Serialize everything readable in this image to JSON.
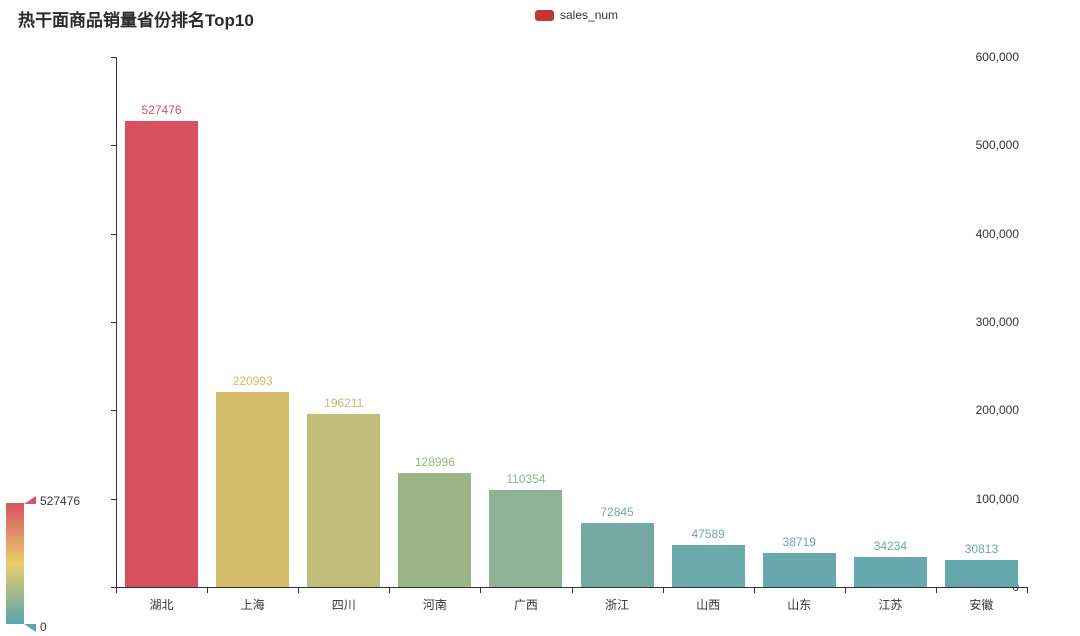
{
  "title": "热干面商品销量省份排名Top10",
  "legend": {
    "label": "sales_num",
    "color": "#c23531"
  },
  "chart_data": {
    "type": "bar",
    "title": "热干面商品销量省份排名Top10",
    "legend": [
      "sales_num"
    ],
    "legend_position": "top-center",
    "categories": [
      "湖北",
      "上海",
      "四川",
      "河南",
      "广西",
      "浙江",
      "山西",
      "山东",
      "江苏",
      "安徽"
    ],
    "series": [
      {
        "name": "sales_num",
        "values": [
          527476,
          220993,
          196211,
          128996,
          110354,
          72845,
          47589,
          38719,
          34234,
          30813
        ]
      }
    ],
    "bar_colors": [
      "#d6505e",
      "#d4bb69",
      "#c0bc7a",
      "#9ab587",
      "#8fb294",
      "#74a8a2",
      "#6aa9ac",
      "#68a8ad",
      "#67a8ae",
      "#66a7ae"
    ],
    "xlabel": "",
    "ylabel": "",
    "ylim": [
      0,
      600000
    ],
    "y_ticks": [
      "0",
      "100,000",
      "200,000",
      "300,000",
      "400,000",
      "500,000",
      "600,000"
    ],
    "grid": false,
    "background": "#ffffff"
  },
  "visualmap": {
    "max_label": "527476",
    "min_label": "0",
    "gradient_colors": [
      "#d6545f",
      "#e9cd6d",
      "#5aa5ad"
    ],
    "handle_top_color": "#d6545f",
    "handle_bottom_color": "#5aa5ad"
  }
}
